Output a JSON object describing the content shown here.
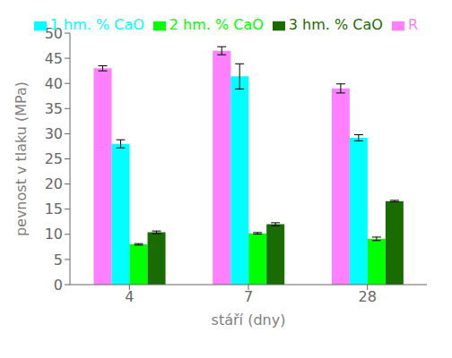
{
  "chart_data": {
    "type": "bar",
    "xlabel": "stáří (dny)",
    "ylabel": "pevnost v tlaku (MPa)",
    "categories": [
      "4",
      "7",
      "28"
    ],
    "series": [
      {
        "name": "R",
        "color": "#FF80FF",
        "values": [
          43.0,
          46.5,
          39.0
        ],
        "errors": [
          0.5,
          0.8,
          0.9
        ]
      },
      {
        "name": "1 hm. % CaO",
        "color": "#00FFFF",
        "values": [
          28.0,
          41.4,
          29.2
        ],
        "errors": [
          0.8,
          2.5,
          0.6
        ]
      },
      {
        "name": "2 hm. % CaO",
        "color": "#00FF00",
        "values": [
          8.0,
          10.2,
          9.1
        ],
        "errors": [
          0.15,
          0.15,
          0.35
        ]
      },
      {
        "name": "3 hm. % CaO",
        "color": "#1A6B00",
        "values": [
          10.4,
          12.0,
          16.6
        ],
        "errors": [
          0.25,
          0.3,
          0.15
        ]
      }
    ],
    "ylim": [
      0,
      50
    ],
    "yticks": [
      0,
      5,
      10,
      15,
      20,
      25,
      30,
      35,
      40,
      45,
      50
    ],
    "grid": false,
    "legend": "upper right"
  }
}
